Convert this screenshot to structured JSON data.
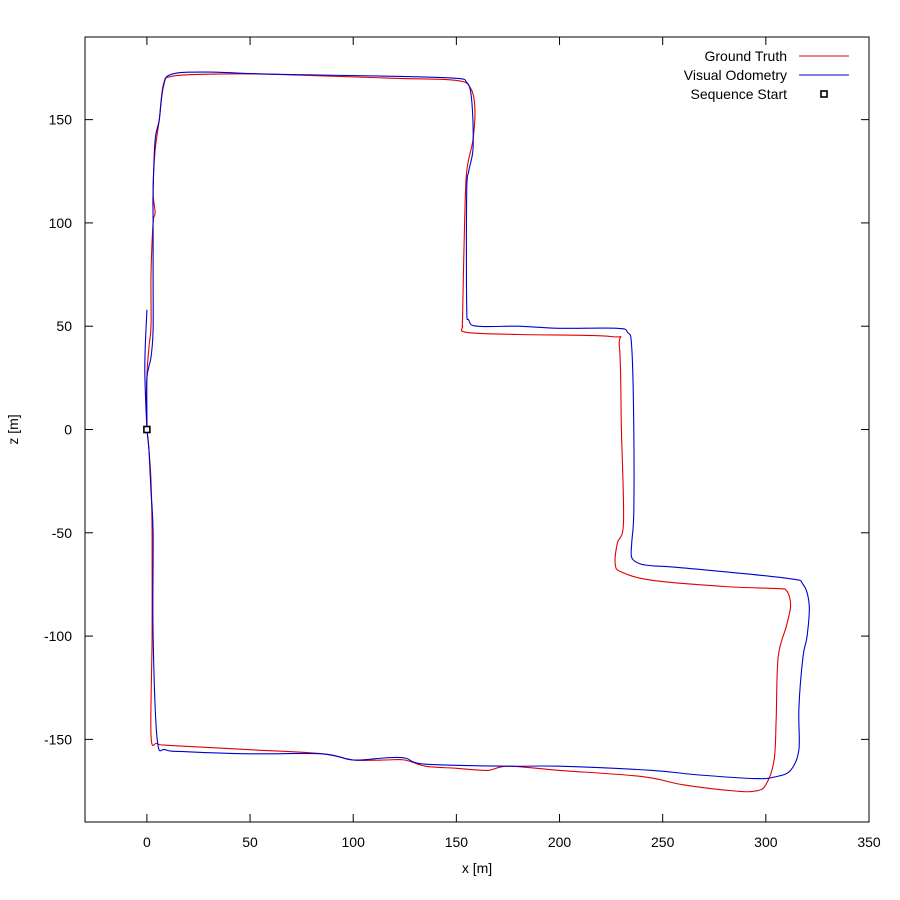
{
  "chart_data": {
    "type": "line",
    "title": "",
    "xlabel": "x [m]",
    "ylabel": "z [m]",
    "xlim": [
      -30,
      350
    ],
    "ylim": [
      -190,
      190
    ],
    "grid": false,
    "legend_position": "top-right",
    "xticks": [
      0,
      50,
      100,
      150,
      200,
      250,
      300,
      350
    ],
    "yticks": [
      -150,
      -100,
      -50,
      0,
      50,
      100,
      150
    ],
    "series": [
      {
        "name": "Ground Truth",
        "color": "#e00000",
        "points": [
          [
            0,
            0
          ],
          [
            1,
            -10
          ],
          [
            2,
            -25
          ],
          [
            2.5,
            -50
          ],
          [
            2.5,
            -100
          ],
          [
            2,
            -148
          ],
          [
            5,
            -152
          ],
          [
            12,
            -153
          ],
          [
            50,
            -155
          ],
          [
            85,
            -157
          ],
          [
            100,
            -160
          ],
          [
            115,
            -160
          ],
          [
            125,
            -160
          ],
          [
            135,
            -163
          ],
          [
            150,
            -164
          ],
          [
            165,
            -165
          ],
          [
            175,
            -163
          ],
          [
            200,
            -165
          ],
          [
            240,
            -168
          ],
          [
            260,
            -172
          ],
          [
            285,
            -175
          ],
          [
            295,
            -175
          ],
          [
            300,
            -172
          ],
          [
            304,
            -160
          ],
          [
            305,
            -140
          ],
          [
            306,
            -110
          ],
          [
            310,
            -95
          ],
          [
            312,
            -85
          ],
          [
            310,
            -78
          ],
          [
            305,
            -77
          ],
          [
            280,
            -76
          ],
          [
            245,
            -73
          ],
          [
            230,
            -69
          ],
          [
            227,
            -65
          ],
          [
            228,
            -55
          ],
          [
            231,
            -45
          ],
          [
            230,
            0
          ],
          [
            229,
            40
          ],
          [
            225,
            45
          ],
          [
            180,
            46
          ],
          [
            155,
            47
          ],
          [
            153,
            50
          ],
          [
            153,
            55
          ],
          [
            154,
            100
          ],
          [
            155,
            125
          ],
          [
            158,
            140
          ],
          [
            159,
            155
          ],
          [
            157,
            165
          ],
          [
            150,
            169
          ],
          [
            120,
            170
          ],
          [
            60,
            172
          ],
          [
            30,
            172
          ],
          [
            12,
            171
          ],
          [
            8,
            167
          ],
          [
            6,
            150
          ],
          [
            4,
            135
          ],
          [
            3,
            115
          ],
          [
            4,
            105
          ],
          [
            3,
            100
          ],
          [
            2,
            75
          ],
          [
            2,
            50
          ],
          [
            1,
            40
          ],
          [
            0,
            25
          ],
          [
            0,
            0
          ]
        ]
      },
      {
        "name": "Visual Odometry",
        "color": "#0000d0",
        "points": [
          [
            0,
            0
          ],
          [
            1,
            -10
          ],
          [
            2,
            -30
          ],
          [
            3,
            -50
          ],
          [
            3,
            -100
          ],
          [
            5,
            -150
          ],
          [
            9,
            -155
          ],
          [
            20,
            -156
          ],
          [
            50,
            -157
          ],
          [
            85,
            -157
          ],
          [
            100,
            -160
          ],
          [
            115,
            -159
          ],
          [
            125,
            -159
          ],
          [
            135,
            -162
          ],
          [
            175,
            -163
          ],
          [
            200,
            -163
          ],
          [
            245,
            -165
          ],
          [
            265,
            -167
          ],
          [
            295,
            -169
          ],
          [
            305,
            -168
          ],
          [
            312,
            -165
          ],
          [
            316,
            -155
          ],
          [
            316,
            -135
          ],
          [
            318,
            -110
          ],
          [
            320,
            -100
          ],
          [
            321,
            -85
          ],
          [
            318,
            -75
          ],
          [
            310,
            -72
          ],
          [
            260,
            -67
          ],
          [
            245,
            -66
          ],
          [
            239,
            -65
          ],
          [
            235,
            -62
          ],
          [
            235,
            -55
          ],
          [
            236,
            -40
          ],
          [
            236,
            0
          ],
          [
            235,
            40
          ],
          [
            233,
            47
          ],
          [
            228,
            49
          ],
          [
            200,
            49
          ],
          [
            180,
            50
          ],
          [
            160,
            50
          ],
          [
            156,
            53
          ],
          [
            155,
            60
          ],
          [
            155,
            115
          ],
          [
            156,
            125
          ],
          [
            158,
            135
          ],
          [
            158,
            150
          ],
          [
            157,
            163
          ],
          [
            155,
            168
          ],
          [
            150,
            170
          ],
          [
            120,
            171
          ],
          [
            60,
            172
          ],
          [
            30,
            173
          ],
          [
            12,
            172
          ],
          [
            8,
            166
          ],
          [
            6,
            150
          ],
          [
            4,
            140
          ],
          [
            3,
            115
          ],
          [
            3,
            100
          ],
          [
            3,
            75
          ],
          [
            3,
            48
          ],
          [
            2,
            35
          ],
          [
            0,
            25
          ],
          [
            0,
            5
          ],
          [
            0,
            0
          ],
          [
            -1,
            30
          ],
          [
            0,
            58
          ]
        ]
      }
    ],
    "markers": [
      {
        "name": "Sequence Start",
        "x": 0,
        "y": 0,
        "symbol": "square",
        "color": "#000000"
      }
    ]
  }
}
